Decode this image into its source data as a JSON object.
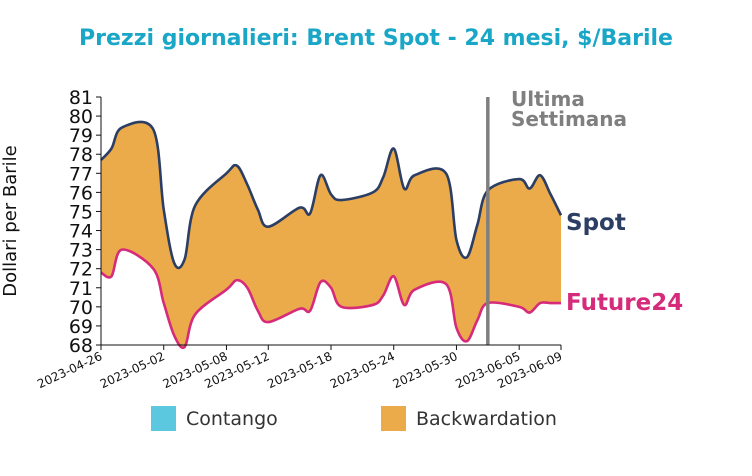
{
  "chart_data": {
    "type": "area",
    "title": "Prezzi giornalieri: Brent Spot - 24 mesi, $/Barile",
    "ylabel": "Dollari per Barile",
    "xlabel": "",
    "ylim": [
      68,
      81
    ],
    "yticks": [
      68,
      69,
      70,
      71,
      72,
      73,
      74,
      75,
      76,
      77,
      78,
      79,
      80,
      81
    ],
    "xticks": [
      "2023-04-26",
      "2023-05-02",
      "2023-05-08",
      "2023-05-12",
      "2023-05-18",
      "2023-05-24",
      "2023-05-30",
      "2023-06-05",
      "2023-06-09"
    ],
    "x": [
      "2023-04-26",
      "2023-04-27",
      "2023-04-28",
      "2023-05-01",
      "2023-05-02",
      "2023-05-03",
      "2023-05-04",
      "2023-05-05",
      "2023-05-08",
      "2023-05-09",
      "2023-05-10",
      "2023-05-11",
      "2023-05-12",
      "2023-05-15",
      "2023-05-16",
      "2023-05-17",
      "2023-05-18",
      "2023-05-19",
      "2023-05-22",
      "2023-05-23",
      "2023-05-24",
      "2023-05-25",
      "2023-05-26",
      "2023-05-29",
      "2023-05-30",
      "2023-05-31",
      "2023-06-01",
      "2023-06-02",
      "2023-06-05",
      "2023-06-06",
      "2023-06-07",
      "2023-06-08",
      "2023-06-09"
    ],
    "series": [
      {
        "name": "Spot",
        "color": "#2c3e63",
        "values": [
          77.7,
          78.3,
          79.4,
          79.3,
          75.1,
          72.3,
          72.5,
          75.3,
          77.0,
          77.4,
          76.4,
          75.1,
          74.2,
          75.2,
          74.9,
          76.9,
          75.9,
          75.6,
          76.0,
          76.8,
          78.3,
          76.2,
          76.9,
          77.0,
          73.5,
          72.6,
          74.3,
          76.1,
          76.7,
          76.2,
          76.9,
          75.9,
          74.8
        ]
      },
      {
        "name": "Future24",
        "color": "#d62a7a",
        "values": [
          71.8,
          71.6,
          73.0,
          72.0,
          70.2,
          68.5,
          67.9,
          69.6,
          70.9,
          71.4,
          71.0,
          69.8,
          69.2,
          69.9,
          69.8,
          71.3,
          71.0,
          70.0,
          70.1,
          70.6,
          71.6,
          70.1,
          70.9,
          71.2,
          68.9,
          68.2,
          69.3,
          70.2,
          70.0,
          69.7,
          70.2,
          70.2,
          70.2
        ]
      }
    ],
    "legend": {
      "placement": "bottom",
      "items": [
        {
          "label": "Contango",
          "color": "#5bc8e0"
        },
        {
          "label": "Backwardation",
          "color": "#ebab4b"
        }
      ]
    },
    "annotation": {
      "lines": [
        "Ultima",
        "Settimana"
      ],
      "at_x": "2023-06-02",
      "color": "#7f7f7f"
    },
    "fill_color": "#ebab4b",
    "grid": false
  }
}
